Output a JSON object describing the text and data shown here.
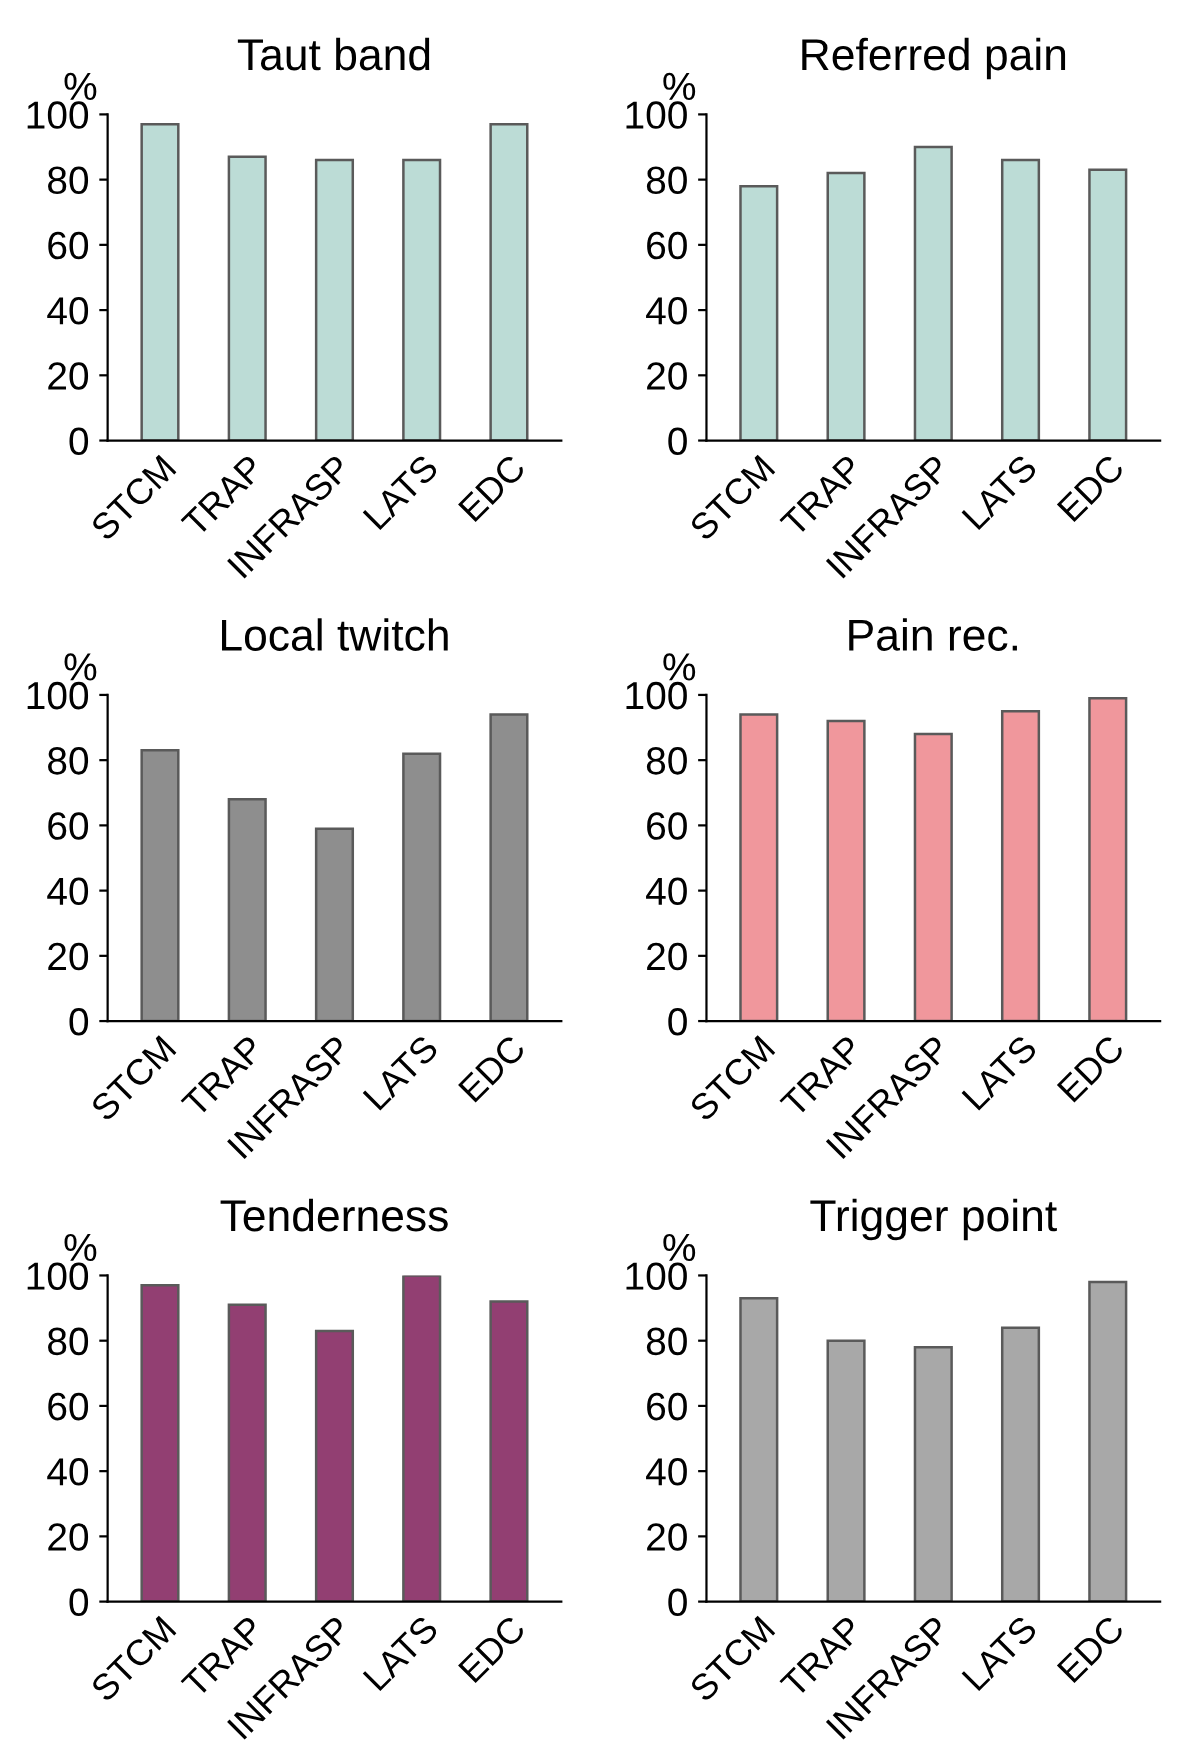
{
  "chart_data": [
    {
      "type": "bar",
      "title": "Taut band",
      "ylabel": "%",
      "categories": [
        "STCM",
        "TRAP",
        "INFRASP",
        "LATS",
        "EDC"
      ],
      "values": [
        97,
        87,
        86,
        86,
        97
      ],
      "color": "#bcdcd6",
      "ylim": [
        0,
        100
      ],
      "yticks": [
        0,
        20,
        40,
        60,
        80,
        100
      ],
      "grid": false
    },
    {
      "type": "bar",
      "title": "Referred pain",
      "ylabel": "%",
      "categories": [
        "STCM",
        "TRAP",
        "INFRASP",
        "LATS",
        "EDC"
      ],
      "values": [
        78,
        82,
        90,
        86,
        83
      ],
      "color": "#bcdcd6",
      "ylim": [
        0,
        100
      ],
      "yticks": [
        0,
        20,
        40,
        60,
        80,
        100
      ],
      "grid": false
    },
    {
      "type": "bar",
      "title": "Local twitch",
      "ylabel": "%",
      "categories": [
        "STCM",
        "TRAP",
        "INFRASP",
        "LATS",
        "EDC"
      ],
      "values": [
        83,
        68,
        59,
        82,
        94
      ],
      "color": "#8e8e8e",
      "ylim": [
        0,
        100
      ],
      "yticks": [
        0,
        20,
        40,
        60,
        80,
        100
      ],
      "grid": false
    },
    {
      "type": "bar",
      "title": "Pain rec.",
      "ylabel": "%",
      "categories": [
        "STCM",
        "TRAP",
        "INFRASP",
        "LATS",
        "EDC"
      ],
      "values": [
        94,
        92,
        88,
        95,
        99
      ],
      "color": "#f0979c",
      "ylim": [
        0,
        100
      ],
      "yticks": [
        0,
        20,
        40,
        60,
        80,
        100
      ],
      "grid": false
    },
    {
      "type": "bar",
      "title": "Tenderness",
      "ylabel": "%",
      "categories": [
        "STCM",
        "TRAP",
        "INFRASP",
        "LATS",
        "EDC"
      ],
      "values": [
        97,
        91,
        83,
        100,
        92
      ],
      "color": "#923f72",
      "ylim": [
        0,
        100
      ],
      "yticks": [
        0,
        20,
        40,
        60,
        80,
        100
      ],
      "grid": false
    },
    {
      "type": "bar",
      "title": "Trigger point",
      "ylabel": "%",
      "categories": [
        "STCM",
        "TRAP",
        "INFRASP",
        "LATS",
        "EDC"
      ],
      "values": [
        93,
        80,
        78,
        84,
        98
      ],
      "color": "#a8a8a8",
      "ylim": [
        0,
        100
      ],
      "yticks": [
        0,
        20,
        40,
        60,
        80,
        100
      ],
      "grid": false
    }
  ]
}
